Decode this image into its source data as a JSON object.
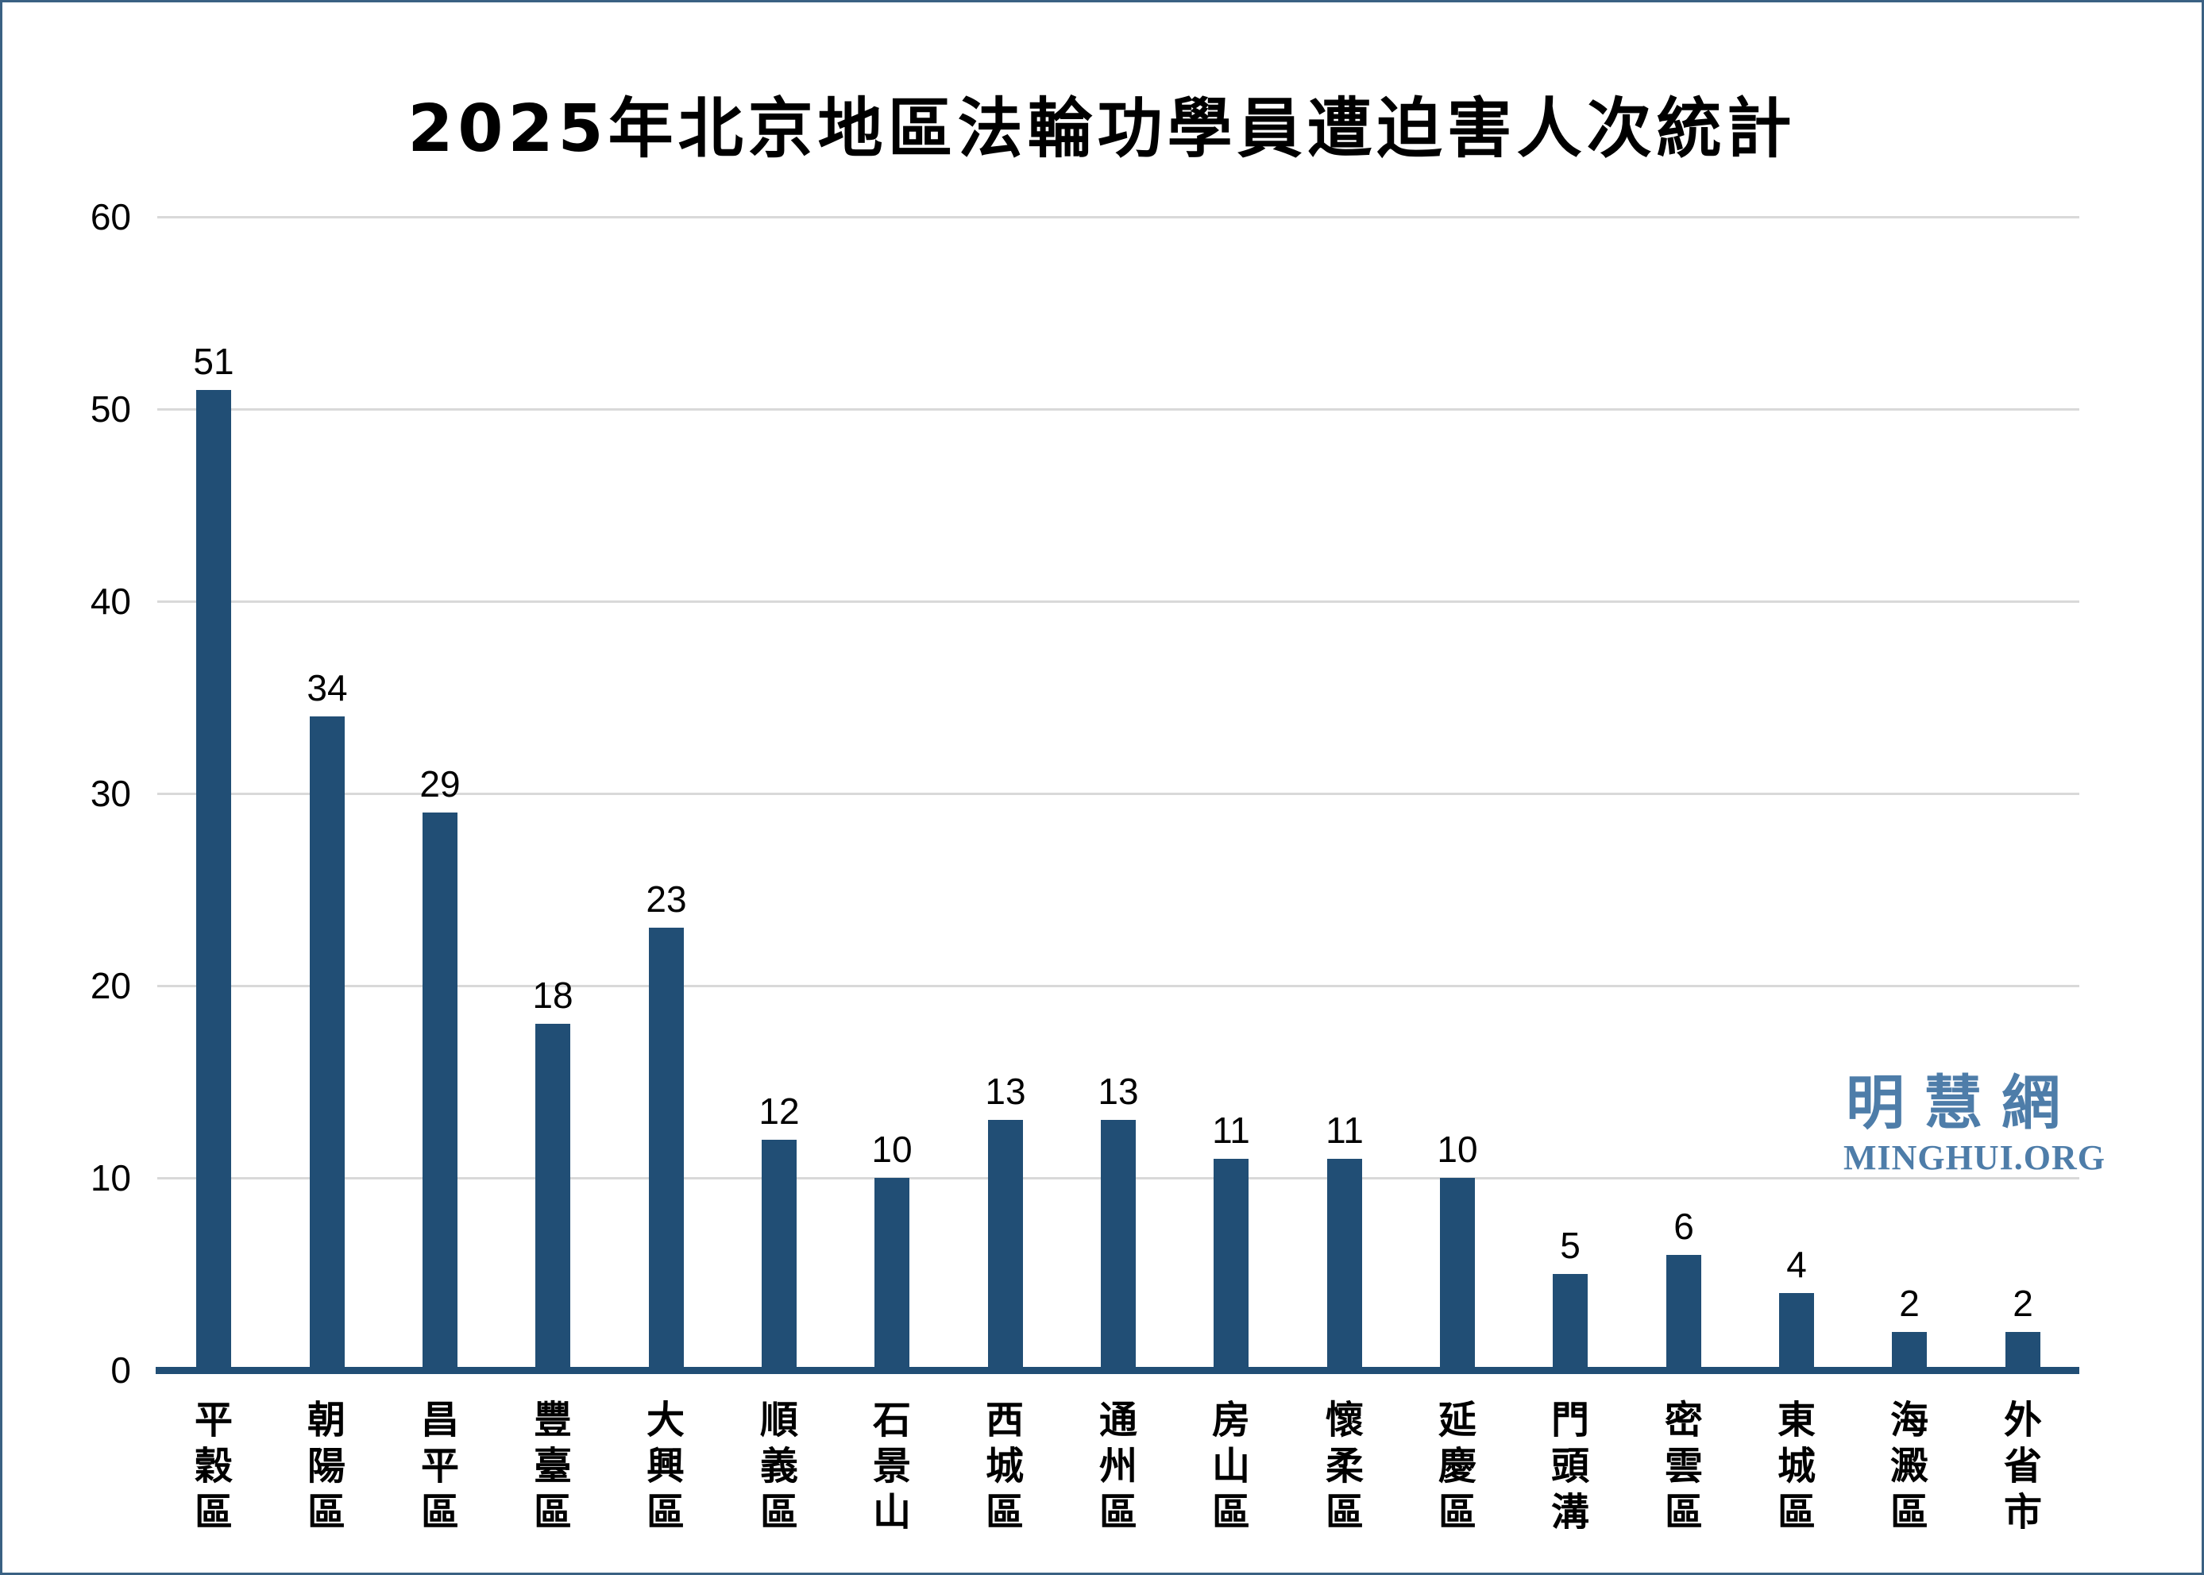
{
  "title": "2025年北京地區法輪功學員遭迫害人次統計",
  "watermark": {
    "site_name_cjk": "明慧網",
    "site_name_latin": "MINGHUI.ORG"
  },
  "colors": {
    "bar": "#214E75",
    "axis_line": "#214E75",
    "gridline": "#D9D9D9",
    "frame_border": "#3A6183",
    "watermark": "#4E7DA9",
    "text": "#000000"
  },
  "chart_data": {
    "type": "bar",
    "title": "2025年北京地區法輪功學員遭迫害人次統計",
    "categories": [
      "平穀區",
      "朝陽區",
      "昌平區",
      "豐臺區",
      "大興區",
      "順義區",
      "石景山",
      "西城區",
      "通州區",
      "房山區",
      "懷柔區",
      "延慶區",
      "門頭溝",
      "密雲區",
      "東城區",
      "海澱區",
      "外省市"
    ],
    "values": [
      51,
      34,
      29,
      18,
      23,
      12,
      10,
      13,
      13,
      11,
      11,
      10,
      5,
      6,
      4,
      2,
      2
    ],
    "value_labels_shown": true,
    "xlabel": "",
    "ylabel": "",
    "ylim": [
      0,
      60
    ],
    "yticks": [
      0,
      10,
      20,
      30,
      40,
      50,
      60
    ],
    "grid": "horizontal",
    "legend": "none",
    "category_label_orientation": "vertical-stacked"
  }
}
